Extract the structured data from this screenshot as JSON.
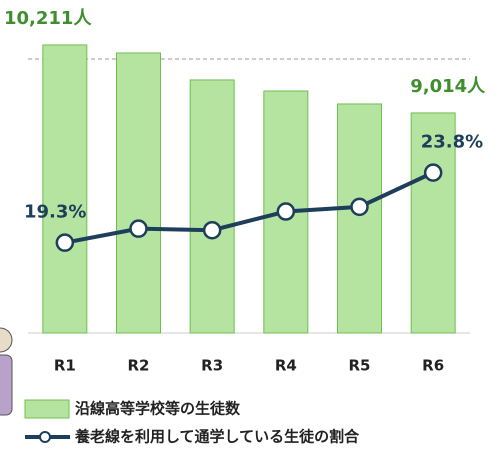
{
  "chart_data": {
    "type": "bar-line",
    "categories": [
      "R1",
      "R2",
      "R3",
      "R4",
      "R5",
      "R6"
    ],
    "ylim": [
      5140,
      10650
    ],
    "y2lim": [
      13.5,
      33.6
    ],
    "series": [
      {
        "name": "沿線高等学校等の生徒数",
        "type": "bar",
        "color": "#b5e3a0",
        "values": [
          10211,
          10070,
          9595,
          9400,
          9172,
          9014
        ],
        "value_labels": [
          "10,211人",
          null,
          null,
          null,
          null,
          "9,014人"
        ]
      },
      {
        "name": "養老線を利用して通学している生徒の割合",
        "type": "line",
        "axis": "y2",
        "color": "#1d3f5c",
        "values": [
          19.3,
          20.2,
          20.1,
          21.3,
          21.6,
          23.8
        ],
        "value_labels": [
          "19.3%",
          null,
          null,
          null,
          null,
          "23.8%"
        ]
      }
    ]
  }
}
